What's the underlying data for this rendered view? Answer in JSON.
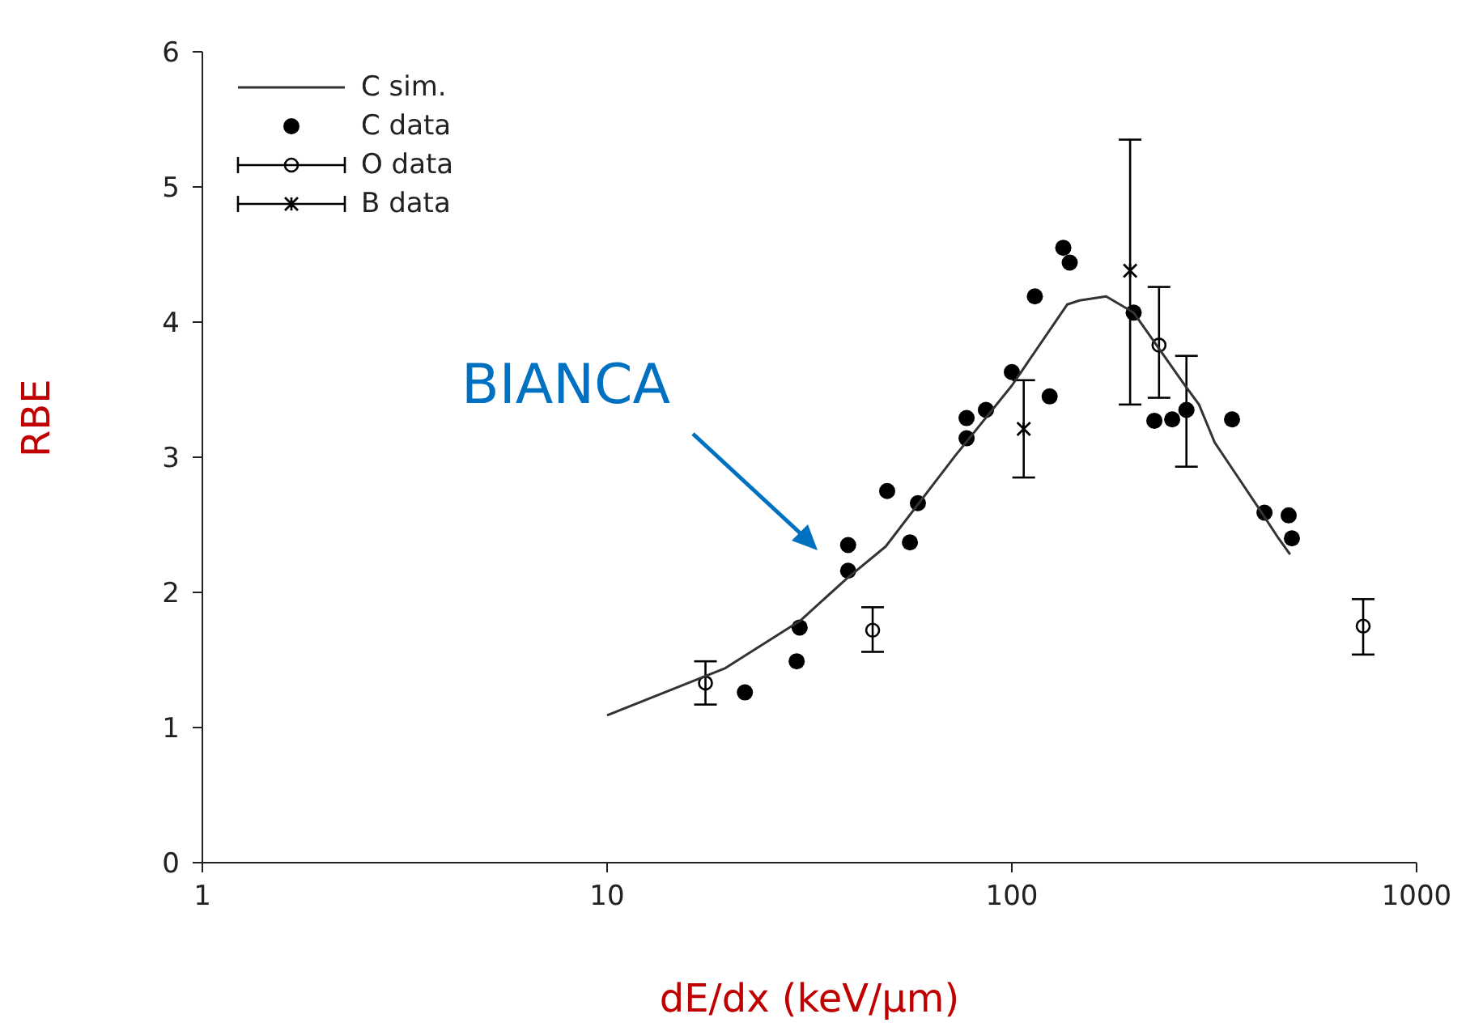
{
  "chart_data": {
    "type": "scatter",
    "xlabel": "dE/dx (keV/μm)",
    "ylabel": "RBE",
    "log": "x",
    "xlim": [
      1,
      1000
    ],
    "xticks": [
      1,
      10,
      100,
      1000
    ],
    "ylim": [
      0,
      6
    ],
    "yticks": [
      0,
      1,
      2,
      3,
      4,
      5,
      6
    ],
    "legend": "top left",
    "annotations": [
      "BIANCA"
    ],
    "series": [
      {
        "name": "C sim.",
        "type": "line",
        "color": "#333333",
        "marker": "none",
        "x": [
          10,
          19.6,
          30,
          39,
          48.8,
          72.4,
          100,
          137,
          147,
          171,
          200,
          265,
          290,
          317,
          406,
          456,
          487
        ],
        "values": [
          1.09,
          1.44,
          1.79,
          2.1,
          2.34,
          3.01,
          3.53,
          4.13,
          4.16,
          4.19,
          4.07,
          3.55,
          3.39,
          3.11,
          2.63,
          2.4,
          2.28
        ]
      },
      {
        "name": "C data",
        "color": "#000000",
        "marker": "circle",
        "x": [
          21.9,
          29.4,
          29.9,
          39.4,
          39.4,
          49.2,
          56,
          58.6,
          77.3,
          77.3,
          86.3,
          100,
          114,
          124,
          134,
          139,
          200,
          225,
          249,
          270,
          350,
          421,
          483,
          492
        ],
        "values": [
          1.26,
          1.49,
          1.74,
          2.16,
          2.35,
          2.75,
          2.37,
          2.66,
          3.14,
          3.29,
          3.35,
          3.63,
          4.19,
          3.45,
          4.55,
          4.44,
          4.07,
          3.27,
          3.28,
          3.35,
          3.28,
          2.59,
          2.57,
          2.4
        ],
        "errors": [
          null,
          null,
          null,
          null,
          null,
          null,
          null,
          null,
          null,
          null,
          null,
          null,
          null,
          null,
          null,
          null,
          null,
          null,
          null,
          [
            2.93,
            3.75
          ],
          null,
          null,
          null,
          null
        ]
      },
      {
        "name": "O data",
        "color": "#000000",
        "marker": "open-circle",
        "x": [
          17.5,
          45.3,
          231,
          738
        ],
        "values": [
          1.33,
          1.72,
          3.83,
          1.75
        ],
        "errors": [
          [
            1.17,
            1.49
          ],
          [
            1.56,
            1.89
          ],
          [
            3.44,
            4.26
          ],
          [
            1.54,
            1.95
          ]
        ]
      },
      {
        "name": "B data",
        "color": "#000000",
        "marker": "cross",
        "x": [
          107,
          196
        ],
        "values": [
          3.21,
          4.38
        ],
        "errors": [
          [
            2.85,
            3.57
          ],
          [
            3.39,
            5.35
          ]
        ]
      }
    ]
  }
}
